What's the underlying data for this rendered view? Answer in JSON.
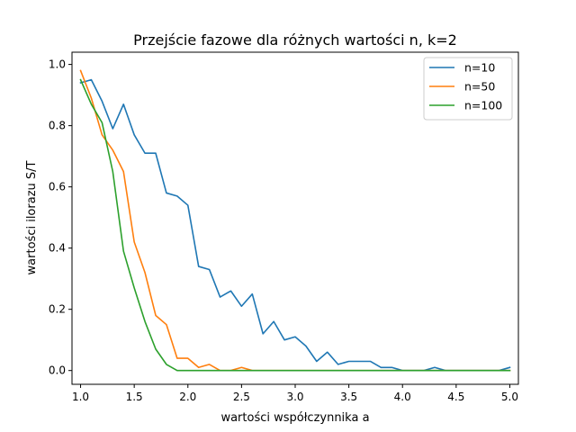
{
  "chart_data": {
    "type": "line",
    "title": "Przejście fazowe dla różnych wartości n, k=2",
    "xlabel": "wartości współczynnika a",
    "ylabel": "wartości ilorazu S/T",
    "xlim": [
      0.92,
      5.08
    ],
    "ylim": [
      -0.045,
      1.04
    ],
    "xticks": [
      "1.0",
      "1.5",
      "2.0",
      "2.5",
      "3.0",
      "3.5",
      "4.0",
      "4.5",
      "5.0"
    ],
    "yticks": [
      "0.0",
      "0.2",
      "0.4",
      "0.6",
      "0.8",
      "1.0"
    ],
    "grid": false,
    "legend_position": "top-right",
    "x": [
      1.0,
      1.1,
      1.2,
      1.3,
      1.4,
      1.5,
      1.6,
      1.7,
      1.8,
      1.9,
      2.0,
      2.1,
      2.2,
      2.3,
      2.4,
      2.5,
      2.6,
      2.7,
      2.8,
      2.9,
      3.0,
      3.1,
      3.2,
      3.3,
      3.4,
      3.5,
      3.6,
      3.7,
      3.8,
      3.9,
      4.0,
      4.1,
      4.2,
      4.3,
      4.4,
      4.5,
      4.6,
      4.7,
      4.8,
      4.9,
      5.0
    ],
    "series": [
      {
        "name": "n=10",
        "color": "#1f77b4",
        "values": [
          0.94,
          0.95,
          0.88,
          0.79,
          0.87,
          0.77,
          0.71,
          0.71,
          0.58,
          0.57,
          0.54,
          0.34,
          0.33,
          0.24,
          0.26,
          0.21,
          0.25,
          0.12,
          0.16,
          0.1,
          0.11,
          0.08,
          0.03,
          0.06,
          0.02,
          0.03,
          0.03,
          0.03,
          0.01,
          0.01,
          0.0,
          0.0,
          0.0,
          0.01,
          0.0,
          0.0,
          0.0,
          0.0,
          0.0,
          0.0,
          0.01
        ]
      },
      {
        "name": "n=50",
        "color": "#ff7f0e",
        "values": [
          0.98,
          0.89,
          0.77,
          0.72,
          0.65,
          0.42,
          0.32,
          0.18,
          0.15,
          0.04,
          0.04,
          0.01,
          0.02,
          0.0,
          0.0,
          0.01,
          0.0,
          0.0,
          0.0,
          0.0,
          0.0,
          0.0,
          0.0,
          0.0,
          0.0,
          0.0,
          0.0,
          0.0,
          0.0,
          0.0,
          0.0,
          0.0,
          0.0,
          0.0,
          0.0,
          0.0,
          0.0,
          0.0,
          0.0,
          0.0,
          0.0
        ]
      },
      {
        "name": "n=100",
        "color": "#2ca02c",
        "values": [
          0.95,
          0.87,
          0.81,
          0.65,
          0.39,
          0.27,
          0.16,
          0.07,
          0.02,
          0.0,
          0.0,
          0.0,
          0.0,
          0.0,
          0.0,
          0.0,
          0.0,
          0.0,
          0.0,
          0.0,
          0.0,
          0.0,
          0.0,
          0.0,
          0.0,
          0.0,
          0.0,
          0.0,
          0.0,
          0.0,
          0.0,
          0.0,
          0.0,
          0.0,
          0.0,
          0.0,
          0.0,
          0.0,
          0.0,
          0.0,
          0.0
        ]
      }
    ]
  }
}
